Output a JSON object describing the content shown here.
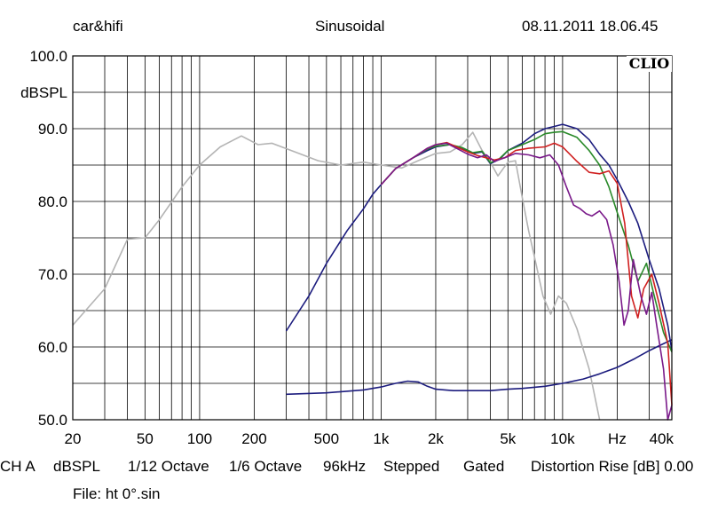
{
  "header": {
    "source": "car&hifi",
    "mode": "Sinusoidal",
    "datetime": "08.11.2011 18.06.45"
  },
  "logo_text": "CLIO",
  "footer": {
    "channel": "CH A",
    "unit": "dBSPL",
    "smoothing1": "1/12 Octave",
    "smoothing2": "1/6 Octave",
    "sample_rate": "96kHz",
    "mode": "Stepped",
    "gating": "Gated",
    "distortion": "Distortion Rise [dB] 0.00",
    "file": "File: ht 0°.sin"
  },
  "chart_data": {
    "type": "line",
    "title": "Sinusoidal",
    "xlabel": "Hz",
    "ylabel": "dBSPL",
    "x_scale": "log",
    "xlim": [
      20,
      40000
    ],
    "ylim": [
      50,
      100
    ],
    "grid": true,
    "x_ticks": [
      {
        "value": 20,
        "label": "20"
      },
      {
        "value": 50,
        "label": "50"
      },
      {
        "value": 100,
        "label": "100"
      },
      {
        "value": 200,
        "label": "200"
      },
      {
        "value": 500,
        "label": "500"
      },
      {
        "value": 1000,
        "label": "1k"
      },
      {
        "value": 2000,
        "label": "2k"
      },
      {
        "value": 5000,
        "label": "5k"
      },
      {
        "value": 10000,
        "label": "10k"
      },
      {
        "value": 20000,
        "label": "Hz"
      },
      {
        "value": 40000,
        "label": "40k"
      }
    ],
    "y_ticks": [
      {
        "value": 100,
        "label": "100.0"
      },
      {
        "value": 95,
        "label": "dBSPL"
      },
      {
        "value": 90,
        "label": "90.0"
      },
      {
        "value": 80,
        "label": "80.0"
      },
      {
        "value": 70,
        "label": "70.0"
      },
      {
        "value": 60,
        "label": "60.0"
      },
      {
        "value": 50,
        "label": "50.0"
      }
    ],
    "series": [
      {
        "name": "gray",
        "color": "#b4b4b4",
        "points": [
          [
            20,
            63
          ],
          [
            30,
            68
          ],
          [
            40,
            74.8
          ],
          [
            50,
            75
          ],
          [
            60,
            77.5
          ],
          [
            80,
            82
          ],
          [
            100,
            85
          ],
          [
            130,
            87.5
          ],
          [
            170,
            89
          ],
          [
            210,
            87.8
          ],
          [
            250,
            88
          ],
          [
            320,
            87
          ],
          [
            450,
            85.6
          ],
          [
            600,
            85
          ],
          [
            800,
            85.4
          ],
          [
            1000,
            85
          ],
          [
            1300,
            84.6
          ],
          [
            1600,
            85.6
          ],
          [
            2000,
            86.6
          ],
          [
            2400,
            86.8
          ],
          [
            2800,
            87.8
          ],
          [
            3200,
            89.5
          ],
          [
            3600,
            87
          ],
          [
            4000,
            85.4
          ],
          [
            4400,
            83.5
          ],
          [
            5000,
            85.4
          ],
          [
            5500,
            85.6
          ],
          [
            6000,
            80.5
          ],
          [
            6500,
            76
          ],
          [
            7200,
            71
          ],
          [
            7800,
            67
          ],
          [
            8600,
            64.5
          ],
          [
            9500,
            67
          ],
          [
            10500,
            66
          ],
          [
            12000,
            62.5
          ],
          [
            14000,
            57
          ],
          [
            16000,
            50
          ]
        ]
      },
      {
        "name": "navy-main",
        "color": "#1c1c7e",
        "points": [
          [
            300,
            62.2
          ],
          [
            400,
            67
          ],
          [
            500,
            71.5
          ],
          [
            650,
            76
          ],
          [
            800,
            79
          ],
          [
            900,
            81
          ],
          [
            1000,
            82.3
          ],
          [
            1200,
            84.5
          ],
          [
            1500,
            86
          ],
          [
            1800,
            87
          ],
          [
            2000,
            87.5
          ],
          [
            2400,
            87.8
          ],
          [
            2800,
            87.2
          ],
          [
            3200,
            86.6
          ],
          [
            3600,
            86.8
          ],
          [
            4000,
            85.2
          ],
          [
            4500,
            85.8
          ],
          [
            5000,
            87
          ],
          [
            6000,
            88
          ],
          [
            7000,
            89.3
          ],
          [
            8000,
            90
          ],
          [
            9000,
            90.3
          ],
          [
            10000,
            90.6
          ],
          [
            12000,
            90
          ],
          [
            14000,
            88.5
          ],
          [
            16000,
            86.5
          ],
          [
            18000,
            85
          ],
          [
            20000,
            83
          ],
          [
            23000,
            80
          ],
          [
            26000,
            77
          ],
          [
            30000,
            72
          ],
          [
            34000,
            68
          ],
          [
            38000,
            63
          ],
          [
            40000,
            59.5
          ]
        ]
      },
      {
        "name": "navy-distortion",
        "color": "#1c1c7e",
        "points": [
          [
            300,
            53.5
          ],
          [
            500,
            53.7
          ],
          [
            800,
            54.1
          ],
          [
            1000,
            54.5
          ],
          [
            1200,
            55
          ],
          [
            1400,
            55.3
          ],
          [
            1600,
            55.2
          ],
          [
            1800,
            54.6
          ],
          [
            2000,
            54.2
          ],
          [
            2500,
            54
          ],
          [
            3000,
            54
          ],
          [
            4000,
            54
          ],
          [
            5000,
            54.2
          ],
          [
            6000,
            54.3
          ],
          [
            8000,
            54.6
          ],
          [
            10000,
            55
          ],
          [
            13000,
            55.6
          ],
          [
            16000,
            56.3
          ],
          [
            20000,
            57.2
          ],
          [
            25000,
            58.4
          ],
          [
            30000,
            59.5
          ],
          [
            35000,
            60.3
          ],
          [
            40000,
            61
          ]
        ]
      },
      {
        "name": "green",
        "color": "#2a8a2a",
        "points": [
          [
            1000,
            82.3
          ],
          [
            1200,
            84.5
          ],
          [
            1500,
            86
          ],
          [
            1800,
            87.2
          ],
          [
            2000,
            87.6
          ],
          [
            2400,
            87.8
          ],
          [
            2800,
            87.4
          ],
          [
            3200,
            86.7
          ],
          [
            3600,
            86.9
          ],
          [
            4000,
            85.3
          ],
          [
            4500,
            85.9
          ],
          [
            5000,
            87
          ],
          [
            6000,
            87.8
          ],
          [
            7000,
            88.5
          ],
          [
            8000,
            89.3
          ],
          [
            9000,
            89.5
          ],
          [
            10000,
            89.6
          ],
          [
            12000,
            88.8
          ],
          [
            14000,
            87
          ],
          [
            16000,
            85
          ],
          [
            18000,
            82
          ],
          [
            20000,
            78.5
          ],
          [
            23000,
            74
          ],
          [
            26000,
            69
          ],
          [
            29000,
            71.5
          ],
          [
            32000,
            67
          ],
          [
            36000,
            62
          ],
          [
            40000,
            59.3
          ]
        ]
      },
      {
        "name": "red",
        "color": "#d02020",
        "points": [
          [
            1000,
            82.3
          ],
          [
            1200,
            84.5
          ],
          [
            1500,
            86
          ],
          [
            1800,
            87.3
          ],
          [
            2000,
            87.8
          ],
          [
            2300,
            88.1
          ],
          [
            2600,
            87.5
          ],
          [
            3000,
            86.8
          ],
          [
            3400,
            86.3
          ],
          [
            3800,
            86
          ],
          [
            4200,
            85.7
          ],
          [
            4800,
            86
          ],
          [
            5500,
            87
          ],
          [
            6500,
            87.3
          ],
          [
            8000,
            87.5
          ],
          [
            9000,
            88
          ],
          [
            10000,
            87.5
          ],
          [
            12000,
            85.5
          ],
          [
            14000,
            84
          ],
          [
            16000,
            83.8
          ],
          [
            18000,
            84.2
          ],
          [
            20000,
            82.5
          ],
          [
            22000,
            77
          ],
          [
            24000,
            67
          ],
          [
            26000,
            64
          ],
          [
            28000,
            68
          ],
          [
            31000,
            70
          ],
          [
            34000,
            66
          ],
          [
            38000,
            60.5
          ],
          [
            40000,
            52
          ]
        ]
      },
      {
        "name": "purple",
        "color": "#7a1a8a",
        "points": [
          [
            1000,
            82.3
          ],
          [
            1200,
            84.5
          ],
          [
            1500,
            86
          ],
          [
            1800,
            87.3
          ],
          [
            2000,
            87.8
          ],
          [
            2300,
            88
          ],
          [
            2600,
            87.3
          ],
          [
            3000,
            86.5
          ],
          [
            3400,
            86
          ],
          [
            3800,
            86.4
          ],
          [
            4200,
            85.5
          ],
          [
            4800,
            86
          ],
          [
            5500,
            86.6
          ],
          [
            6500,
            86.4
          ],
          [
            7500,
            86
          ],
          [
            8500,
            86.4
          ],
          [
            9500,
            85
          ],
          [
            10500,
            82
          ],
          [
            11500,
            79.5
          ],
          [
            12500,
            79
          ],
          [
            13500,
            78.3
          ],
          [
            14500,
            78
          ],
          [
            16000,
            78.7
          ],
          [
            17500,
            77.5
          ],
          [
            19000,
            74
          ],
          [
            20500,
            69
          ],
          [
            21800,
            63
          ],
          [
            23000,
            65
          ],
          [
            24500,
            72
          ],
          [
            27000,
            67
          ],
          [
            29000,
            64.5
          ],
          [
            31000,
            67.5
          ],
          [
            33000,
            63
          ],
          [
            36000,
            57
          ],
          [
            38000,
            50
          ],
          [
            40000,
            52
          ]
        ]
      }
    ]
  }
}
